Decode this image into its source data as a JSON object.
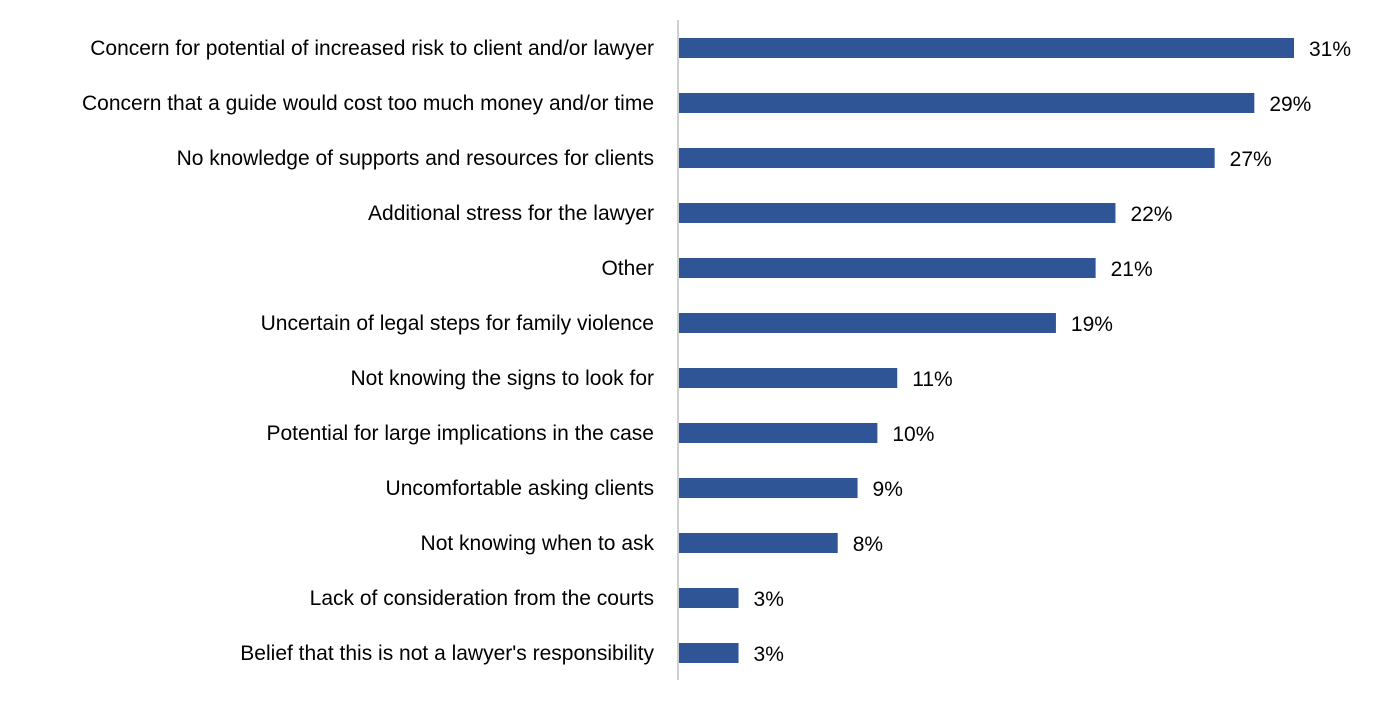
{
  "chart_data": {
    "type": "bar",
    "orientation": "horizontal",
    "categories": [
      "Concern for potential of increased risk to client and/or lawyer",
      "Concern that a guide would cost too much money and/or time",
      "No knowledge of supports and resources for clients",
      "Additional stress for the lawyer",
      "Other",
      "Uncertain of legal steps for family violence",
      "Not knowing the signs to look for",
      "Potential for large implications in the case",
      "Uncomfortable asking clients",
      "Not knowing when to ask",
      "Lack of consideration from the courts",
      "Belief that this is not a lawyer's responsibility"
    ],
    "values": [
      31,
      29,
      27,
      22,
      21,
      19,
      11,
      10,
      9,
      8,
      3,
      3
    ],
    "value_labels": [
      "31%",
      "29%",
      "27%",
      "22%",
      "21%",
      "19%",
      "11%",
      "10%",
      "9%",
      "8%",
      "3%",
      "3%"
    ],
    "unit": "%",
    "xlim": [
      0,
      31
    ],
    "grid": false,
    "legend": "none",
    "bar_color": "#2F5597",
    "axis_color": "#BFBFBF"
  }
}
